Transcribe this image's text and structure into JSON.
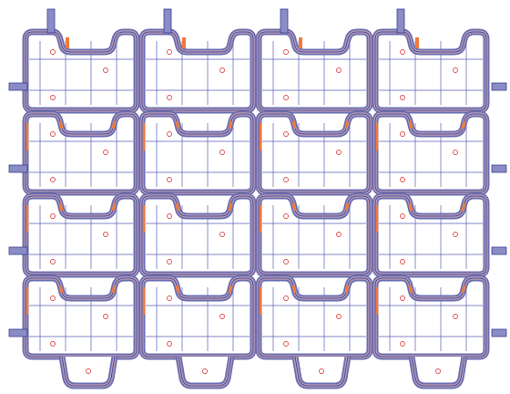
{
  "canvas": {
    "background": "#ffffff"
  },
  "layout_grid": {
    "cell_columns": 4,
    "cell_rows": 4
  },
  "colors": {
    "outer_band": "#6b6fb1",
    "band_core": "#b59ab6",
    "inner_line": "#3c3f91",
    "crease_line": "#5a5db8",
    "fold_highlight": "#f07a3c",
    "cut_line": "#cc3333",
    "registration_mark": "#e24a4a",
    "tab_fill": "#8a8cc6"
  },
  "legend": []
}
